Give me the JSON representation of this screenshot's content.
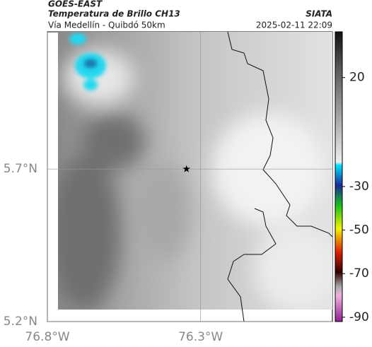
{
  "header": {
    "satellite": "GOES-EAST",
    "product": "Temperatura de Brillo CH13",
    "region": "Vía Medellín - Quibdó 50km",
    "source": "SIATA",
    "timestamp": "2025-02-11 22:09"
  },
  "map": {
    "lon_range": [
      -76.8,
      -75.87
    ],
    "lat_range": [
      5.2,
      6.15
    ],
    "lon_ticks": [
      {
        "value": -76.8,
        "label": "76.8°W"
      },
      {
        "value": -76.3,
        "label": "76.3°W"
      }
    ],
    "lat_ticks": [
      {
        "value": 5.2,
        "label": "5.2°N"
      },
      {
        "value": 5.7,
        "label": "5.7°N"
      }
    ],
    "marker": {
      "lon": -76.346,
      "lat": 5.7
    }
  },
  "colorbar": {
    "range": [
      41,
      -92
    ],
    "ticks": [
      20,
      -30,
      -50,
      -70,
      -90
    ]
  }
}
